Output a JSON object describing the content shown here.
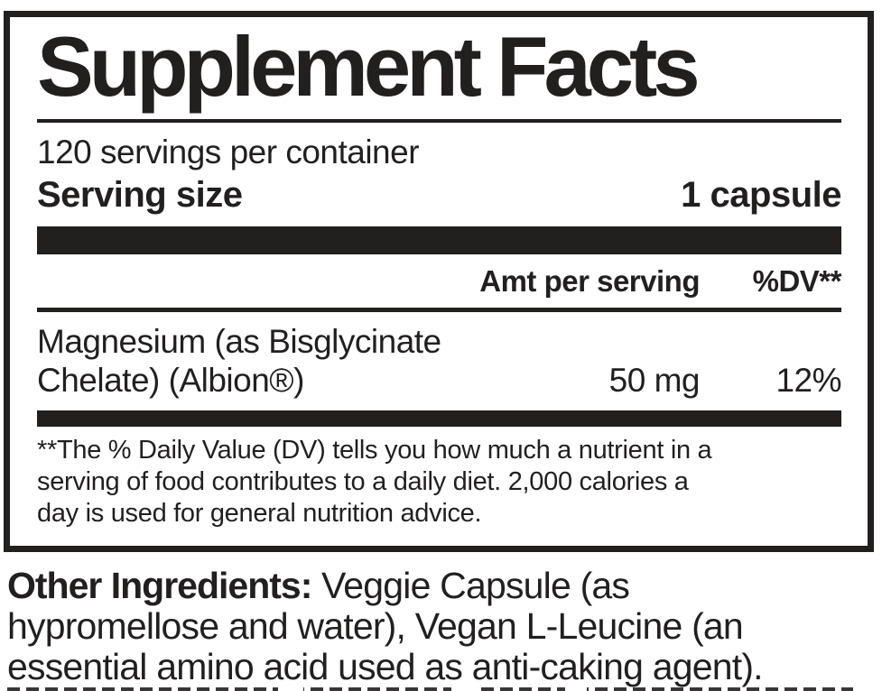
{
  "colors": {
    "ink": "#221f1f",
    "background": "#ffffff"
  },
  "panel": {
    "title": "Supplement Facts",
    "servings_per_container": "120 servings per container",
    "serving_size": {
      "label": "Serving size",
      "value": "1 capsule"
    },
    "columns": {
      "amount": "Amt per serving",
      "dv": "%DV**"
    },
    "rows": [
      {
        "name_line1": "Magnesium (as Bisglycinate",
        "name_line2": "Chelate) (Albion®)",
        "amount": "50 mg",
        "dv": "12%"
      }
    ],
    "footnote_lines": [
      "**The % Daily Value (DV) tells you how much a nutrient in a",
      "serving of food contributes to a daily diet. 2,000 calories a",
      "day is used for general nutrition advice."
    ]
  },
  "other_ingredients": {
    "label": "Other Ingredients:",
    "line1_rest": " Veggie Capsule (as",
    "line2": "hypromellose and water), Vegan L-Leucine (an",
    "line3": "essential amino acid used as anti-caking agent)."
  }
}
